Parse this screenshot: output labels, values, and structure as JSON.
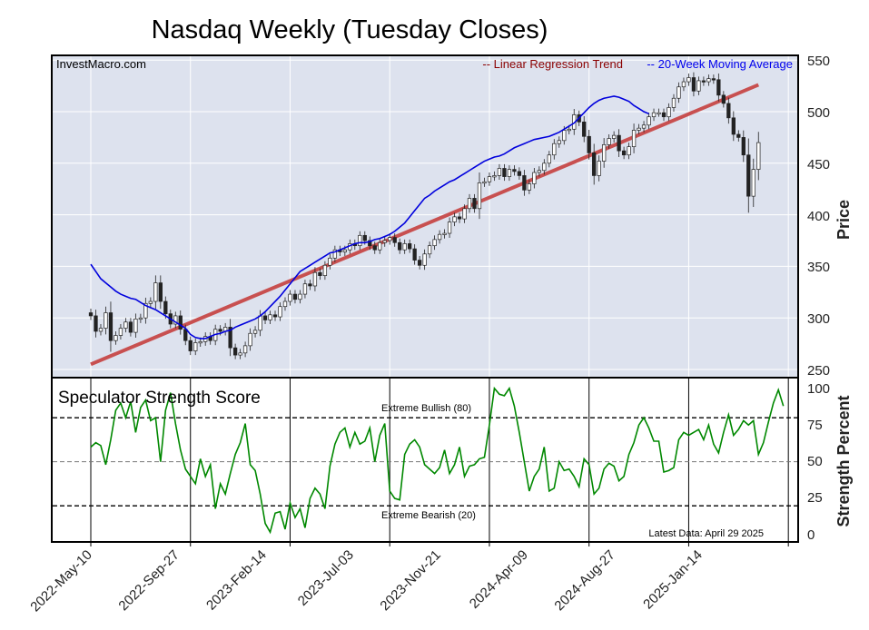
{
  "title": "Nasdaq Weekly (Tuesday Closes)",
  "watermark": "InvestMacro.com",
  "legend": {
    "regression": "-- Linear Regression Trend",
    "moving_average": "-- 20-Week Moving Average",
    "regression_color": "#8b0000",
    "ma_color": "#0000ee"
  },
  "colors": {
    "panel_bg": "#dde2ee",
    "grid": "#ffffff",
    "trend_line": "#c85050",
    "ma_line": "#0000dd",
    "strength_line": "#008800",
    "candle_up": "#ffffff",
    "candle_down": "#222222"
  },
  "price_axis": {
    "label": "Price",
    "ticks": [
      "550",
      "500",
      "450",
      "400",
      "350",
      "300",
      "250"
    ]
  },
  "strength_axis": {
    "label": "Strength Percent",
    "ticks": [
      "100",
      "75",
      "50",
      "25",
      "0"
    ]
  },
  "strength_panel": {
    "title": "Speculator Strength Score",
    "bullish_label": "Extreme Bullish (80)",
    "bearish_label": "Extreme Bearish (20)",
    "latest_label": "Latest Data: April 29 2025"
  },
  "x_ticks": [
    "2022-May-10",
    "2022-Sep-27",
    "2023-Feb-14",
    "2023-Jul-03",
    "2023-Nov-21",
    "2024-Apr-09",
    "2024-Aug-27",
    "2025-Jan-14"
  ],
  "chart_data": [
    {
      "type": "candlestick",
      "title": "Nasdaq Weekly (Tuesday Closes)",
      "ylabel": "Price",
      "ylim": [
        240,
        555
      ],
      "x_start": "2022-May-10",
      "x_interval": "1 week",
      "x_tick_labels": [
        "2022-May-10",
        "2022-Sep-27",
        "2023-Feb-14",
        "2023-Jul-03",
        "2023-Nov-21",
        "2024-Apr-09",
        "2024-Aug-27",
        "2025-Jan-14"
      ],
      "trend": {
        "name": "Linear Regression Trend",
        "start": 255,
        "end": 526
      },
      "close": [
        302,
        287,
        290,
        305,
        278,
        283,
        290,
        296,
        286,
        299,
        300,
        314,
        316,
        334,
        316,
        304,
        294,
        302,
        289,
        278,
        268,
        276,
        277,
        282,
        278,
        289,
        287,
        291,
        271,
        264,
        266,
        273,
        285,
        288,
        302,
        298,
        303,
        301,
        311,
        316,
        323,
        318,
        323,
        333,
        331,
        344,
        341,
        351,
        358,
        366,
        364,
        366,
        372,
        370,
        380,
        375,
        370,
        366,
        373,
        375,
        378,
        373,
        366,
        372,
        367,
        356,
        351,
        362,
        370,
        376,
        381,
        382,
        393,
        398,
        396,
        406,
        416,
        406,
        431,
        432,
        437,
        438,
        445,
        437,
        444,
        442,
        438,
        424,
        430,
        441,
        443,
        450,
        458,
        469,
        472,
        482,
        483,
        497,
        490,
        476,
        460,
        438,
        452,
        468,
        474,
        477,
        462,
        458,
        466,
        482,
        484,
        487,
        495,
        499,
        499,
        495,
        504,
        513,
        524,
        529,
        533,
        520,
        530,
        529,
        532,
        531,
        516,
        508,
        494,
        478,
        475,
        458,
        418,
        444,
        470
      ]
    },
    {
      "type": "line",
      "title": "",
      "name": "20-Week Moving Average",
      "ylabel": "Price",
      "x_start": "2022-Sep-20",
      "values": [
        352,
        345,
        338,
        334,
        330,
        326,
        323,
        321,
        319,
        318,
        315,
        312,
        310,
        308,
        305,
        302,
        299,
        296,
        293,
        290,
        284,
        281,
        280,
        280,
        282,
        284,
        285,
        287,
        288,
        291,
        293,
        295,
        297,
        299,
        302,
        306,
        311,
        316,
        321,
        327,
        333,
        339,
        345,
        348,
        351,
        354,
        357,
        360,
        363,
        364,
        366,
        368,
        370,
        372,
        373,
        373,
        374,
        376,
        377,
        379,
        381,
        384,
        388,
        392,
        398,
        404,
        410,
        416,
        419,
        423,
        426,
        429,
        432,
        434,
        437,
        440,
        443,
        446,
        449,
        452,
        454,
        456,
        457,
        459,
        462,
        465,
        467,
        469,
        471,
        473,
        474,
        475,
        476,
        478,
        480,
        483,
        486,
        489,
        494,
        499,
        504,
        508,
        511,
        513,
        514,
        515,
        514,
        512,
        510,
        506,
        503,
        500,
        498
      ]
    },
    {
      "type": "line",
      "title": "Speculator Strength Score",
      "name": "Speculator Strength Score",
      "ylabel": "Strength Percent",
      "ylim": [
        -5,
        105
      ],
      "thresholds": {
        "extreme_bullish": 80,
        "extreme_bearish": 20,
        "midline": 50
      },
      "values": [
        60,
        63,
        61,
        48,
        65,
        85,
        90,
        80,
        91,
        70,
        87,
        92,
        78,
        80,
        50,
        85,
        97,
        76,
        58,
        45,
        40,
        35,
        52,
        40,
        48,
        18,
        35,
        28,
        42,
        55,
        63,
        76,
        48,
        44,
        28,
        8,
        2,
        15,
        16,
        4,
        22,
        12,
        18,
        5,
        25,
        32,
        28,
        18,
        47,
        62,
        70,
        73,
        60,
        70,
        62,
        64,
        73,
        50,
        68,
        76,
        30,
        25,
        24,
        55,
        62,
        65,
        60,
        48,
        45,
        42,
        46,
        58,
        42,
        48,
        60,
        40,
        47,
        48,
        52,
        53,
        75,
        100,
        96,
        95,
        100,
        88,
        70,
        50,
        30,
        40,
        45,
        60,
        30,
        32,
        50,
        44,
        45,
        40,
        33,
        52,
        48,
        28,
        32,
        45,
        49,
        47,
        37,
        40,
        55,
        63,
        75,
        80,
        73,
        64,
        64,
        43,
        44,
        46,
        65,
        70,
        68,
        70,
        72,
        65,
        75,
        62,
        56,
        70,
        82,
        68,
        72,
        78,
        75,
        78,
        55,
        63,
        77,
        90,
        99,
        88
      ]
    }
  ]
}
